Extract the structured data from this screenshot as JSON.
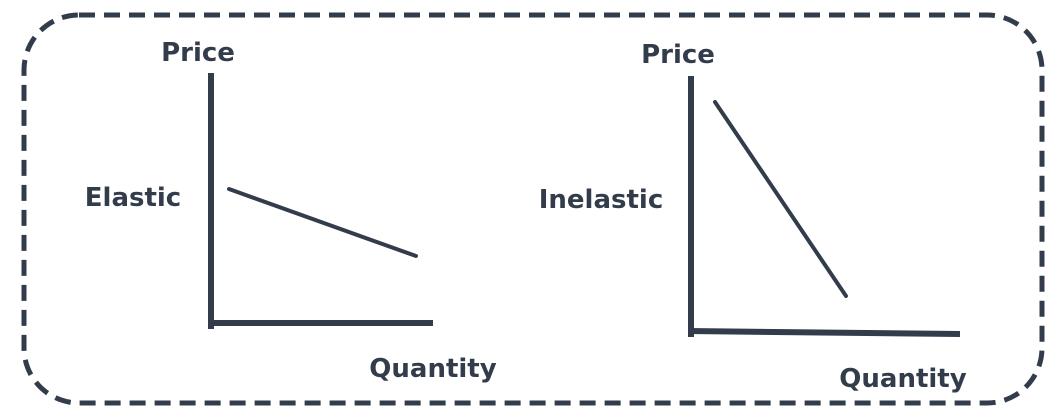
{
  "colors": {
    "ink": "#323c4b",
    "background": "#ffffff"
  },
  "panels": [
    {
      "label": "Elastic",
      "y_axis_label": "Price",
      "x_axis_label": "Quantity"
    },
    {
      "label": "Inelastic",
      "y_axis_label": "Price",
      "x_axis_label": "Quantity"
    }
  ]
}
